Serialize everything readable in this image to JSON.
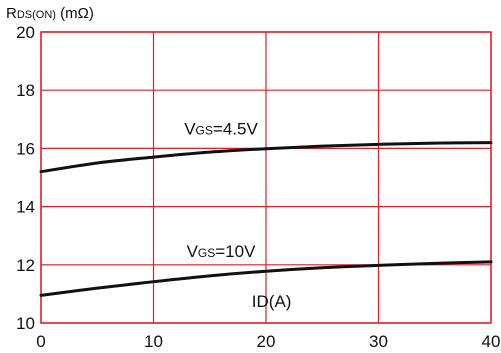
{
  "chart_data": {
    "type": "line",
    "ylabel": {
      "main": "R",
      "sub": "DS(ON)",
      "unit": " (mΩ)"
    },
    "xlabel": "ID(A)",
    "xlim": [
      0,
      40
    ],
    "ylim": [
      10,
      20
    ],
    "xticks": [
      0,
      10,
      20,
      30,
      40
    ],
    "yticks": [
      10,
      12,
      14,
      16,
      18,
      20
    ],
    "grid": true,
    "series": [
      {
        "label_main": "V",
        "label_sub": "GS",
        "label_value": "=4.5V",
        "x": [
          0,
          5,
          10,
          15,
          20,
          25,
          30,
          35,
          40
        ],
        "y": [
          15.2,
          15.5,
          15.7,
          15.87,
          15.99,
          16.08,
          16.14,
          16.18,
          16.2
        ]
      },
      {
        "label_main": "V",
        "label_sub": "GS",
        "label_value": "=10V",
        "x": [
          0,
          5,
          10,
          15,
          20,
          25,
          30,
          35,
          40
        ],
        "y": [
          10.95,
          11.2,
          11.42,
          11.62,
          11.78,
          11.9,
          11.98,
          12.05,
          12.1
        ]
      }
    ],
    "colors": {
      "grid": "#e01f27",
      "axis": "#e01f27",
      "line": "#111111",
      "text": "#111111"
    }
  }
}
